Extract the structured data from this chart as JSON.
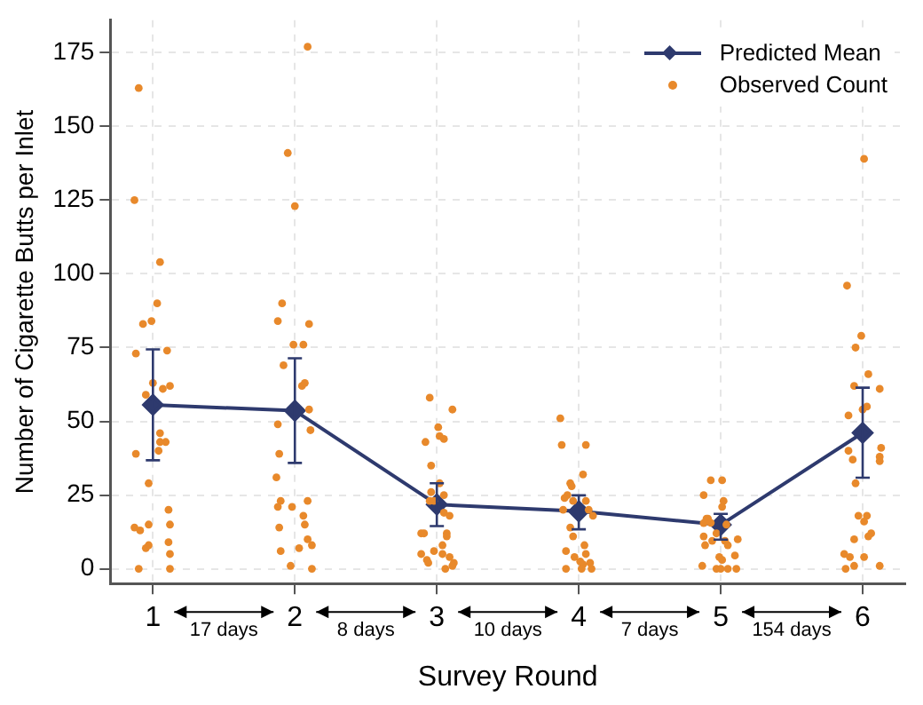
{
  "chart_data": {
    "type": "line",
    "xlabel": "Survey Round",
    "ylabel": "Number of Cigarette Butts per Inlet",
    "xlim": [
      0.7,
      6.3
    ],
    "xticks": [
      1,
      2,
      3,
      4,
      5,
      6
    ],
    "ylim": [
      -5,
      186
    ],
    "yticks": [
      0,
      25,
      50,
      75,
      100,
      125,
      150,
      175
    ],
    "grid": true,
    "legend": "top right",
    "annotations": [
      "17 days",
      "8 days",
      "10 days",
      "7 days",
      "154 days"
    ],
    "series": [
      {
        "name": "Predicted Mean",
        "color": "#2e3a6e",
        "marker": "diamond",
        "line_style": "solid",
        "x": [
          1,
          2,
          3,
          4,
          5,
          6
        ],
        "values": [
          55.6,
          53.6,
          21.8,
          19.5,
          14.9,
          46.1
        ],
        "errors": [
          [
            36.8,
            74.4
          ],
          [
            35.9,
            71.4
          ],
          [
            14.5,
            29.0
          ],
          [
            13.4,
            24.9
          ],
          [
            9.9,
            18.6
          ],
          [
            30.9,
            61.4
          ]
        ]
      },
      {
        "name": "Observed Count",
        "type": "scatter",
        "color": "#e8892b",
        "marker": "circle",
        "x": [
          0.9,
          0.87,
          1.05,
          1.03,
          0.93,
          0.99,
          0.88,
          1.1,
          0.95,
          1.0,
          1.12,
          1.07,
          1.05,
          1.09,
          1.05,
          1.04,
          0.88,
          0.97,
          1.11,
          1.12,
          0.97,
          0.87,
          0.91,
          0.97,
          0.95,
          1.11,
          1.12,
          0.9,
          1.12,
          2.09,
          1.95,
          2.0,
          1.91,
          1.88,
          2.1,
          1.99,
          2.06,
          1.92,
          2.05,
          2.07,
          2.1,
          1.88,
          2.11,
          1.89,
          1.87,
          1.9,
          1.88,
          1.98,
          2.09,
          2.06,
          2.07,
          1.89,
          2.09,
          2.12,
          1.9,
          2.03,
          1.97,
          2.12,
          2.95,
          3.11,
          3.01,
          3.02,
          3.05,
          2.92,
          2.96,
          3.02,
          2.96,
          3.05,
          2.95,
          2.98,
          3.05,
          3.09,
          2.89,
          2.91,
          3.07,
          3.07,
          3.04,
          2.89,
          2.98,
          3.04,
          3.09,
          2.93,
          2.94,
          3.12,
          3.11,
          3.06,
          3.87,
          3.88,
          4.05,
          4.03,
          3.94,
          3.95,
          3.92,
          3.9,
          3.96,
          4.05,
          3.89,
          4.07,
          4.1,
          3.94,
          3.96,
          3.91,
          4.04,
          3.97,
          4.05,
          4.03,
          4.08,
          3.91,
          4.02,
          4.09,
          4.01,
          4.93,
          5.01,
          4.88,
          5.02,
          5.01,
          4.9,
          4.91,
          4.88,
          4.93,
          5.04,
          4.88,
          4.97,
          4.94,
          5.03,
          4.89,
          5.12,
          5.05,
          4.99,
          5.01,
          5.1,
          4.87,
          4.97,
          5.0,
          5.05,
          5.11,
          6.01,
          5.89,
          5.99,
          5.95,
          6.04,
          5.94,
          6.12,
          6.03,
          6.0,
          5.9,
          6.13,
          5.9,
          5.93,
          6.12,
          6.12,
          5.95,
          5.97,
          6.03,
          6.01,
          5.94,
          6.06,
          6.04,
          6.01,
          5.87,
          5.91,
          5.88,
          5.94,
          6.12
        ],
        "values": [
          163,
          125,
          104,
          90,
          83,
          84,
          73,
          74,
          59,
          63,
          62,
          61,
          46,
          43,
          43,
          40,
          39,
          29,
          20,
          15,
          15,
          14,
          13,
          8,
          7,
          9,
          5,
          0,
          0,
          177,
          141,
          123,
          90,
          84,
          83,
          76,
          76,
          69,
          62,
          63,
          54,
          49,
          47,
          39,
          31,
          23,
          21,
          21,
          23,
          18,
          15,
          14,
          10,
          8,
          6,
          7,
          1,
          0,
          58,
          54,
          48,
          45,
          44,
          43,
          35,
          29,
          26,
          25,
          23,
          23,
          19,
          18,
          12,
          12,
          12,
          11,
          8,
          5,
          6,
          5,
          4,
          3,
          2,
          2,
          1,
          0,
          51,
          42,
          42,
          32,
          29,
          28,
          25,
          24,
          23,
          23,
          20,
          20,
          18,
          14,
          11,
          6,
          8,
          4,
          5,
          1.5,
          2,
          0,
          0,
          0,
          2.5,
          30,
          30,
          25,
          23,
          21,
          17,
          17,
          15.5,
          15.6,
          15,
          11,
          12,
          9.5,
          9.5,
          8,
          10,
          8,
          4,
          3,
          4.5,
          1,
          0,
          0,
          0,
          0,
          139,
          96,
          79,
          75,
          66,
          62,
          61,
          55,
          54,
          52,
          41,
          40,
          37,
          38,
          36.5,
          29,
          18,
          18,
          16,
          10,
          12,
          11,
          4,
          5,
          4,
          0,
          1,
          1
        ]
      }
    ]
  }
}
